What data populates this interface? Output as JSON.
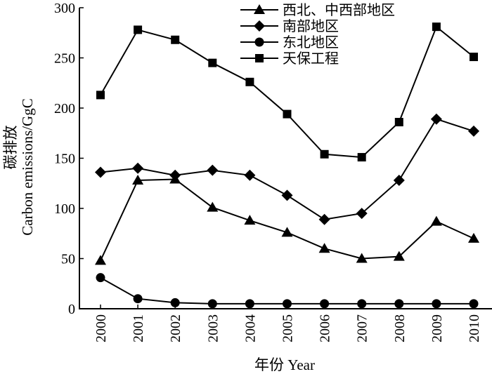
{
  "chart_data": {
    "type": "line",
    "xlabel": "年份 Year",
    "ylabel": "碳排放",
    "ylabel_en": "Carbon emissions/GgC",
    "x": [
      "2000",
      "2001",
      "2002",
      "2003",
      "2004",
      "2005",
      "2006",
      "2007",
      "2008",
      "2009",
      "2010"
    ],
    "yticks": [
      "0",
      "50",
      "100",
      "150",
      "200",
      "250",
      "300"
    ],
    "ylim": [
      0,
      300
    ],
    "grid": false,
    "legend_position": "top-right",
    "series": [
      {
        "name": "西北、中西部地区",
        "marker": "triangle",
        "values": [
          48,
          128,
          129,
          101,
          88,
          76,
          60,
          50,
          52,
          87,
          70
        ]
      },
      {
        "name": "南部地区",
        "marker": "diamond",
        "values": [
          136,
          140,
          133,
          138,
          133,
          113,
          89,
          95,
          128,
          189,
          177
        ]
      },
      {
        "name": "东北地区",
        "marker": "circle",
        "values": [
          31,
          10,
          6,
          5,
          5,
          5,
          5,
          5,
          5,
          5,
          5
        ]
      },
      {
        "name": "天保工程",
        "marker": "square",
        "values": [
          213,
          278,
          268,
          245,
          226,
          194,
          154,
          151,
          186,
          281,
          251
        ]
      }
    ]
  }
}
